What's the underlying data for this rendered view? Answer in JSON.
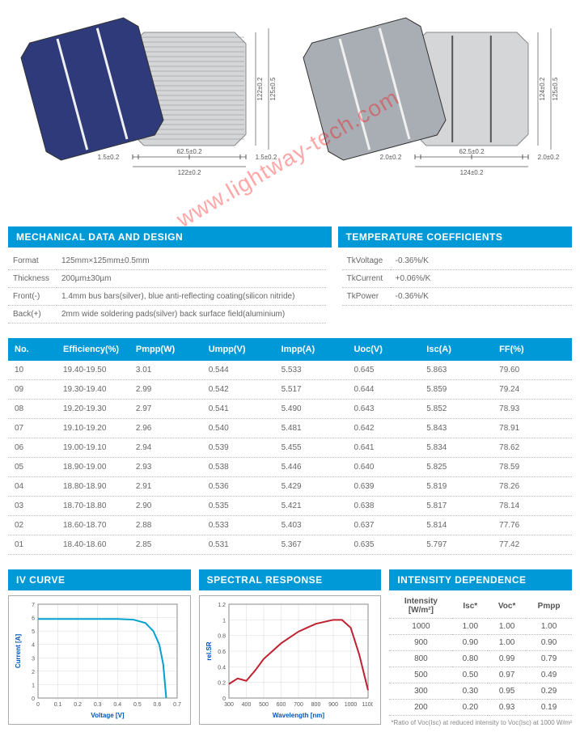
{
  "watermark_text": "www.lightway-tech.com",
  "colors": {
    "header_bg": "#0099d8",
    "header_fg": "#ffffff",
    "cell_blue": "#2e3a7a",
    "cell_grey": "#a8aeb4",
    "busbar": "#f0f0f0",
    "dim_line": "#555555",
    "iv_curve": "#00a0d0",
    "spectral_curve": "#c02030",
    "grid": "#d8d8d8",
    "axis_label": "#0055bb"
  },
  "diagrams": {
    "left": {
      "cell_color": "#2e3a7a",
      "back_has_strips": true,
      "dims_bottom": [
        "1.5±0.2",
        "62.5±0.2",
        "1.5±0.2"
      ],
      "dim_bottom_total": "122±0.2",
      "dims_right": [
        "122±0.2",
        "125±0.5"
      ]
    },
    "right": {
      "cell_color": "#a8aeb4",
      "back_has_strips": false,
      "dims_bottom": [
        "2.0±0.2",
        "62.5±0.2",
        "2.0±0.2"
      ],
      "dim_bottom_total": "124±0.2",
      "dims_right": [
        "124±0.2",
        "125±0.5"
      ]
    }
  },
  "section_headers": {
    "mech": "MECHANICAL DATA AND DESIGN",
    "temp": "TEMPERATURE COEFFICIENTS",
    "iv": "IV CURVE",
    "spectral": "SPECTRAL RESPONSE",
    "intensity": "INTENSITY DEPENDENCE"
  },
  "mech_specs": [
    {
      "k": "Format",
      "v": "125mm×125mm±0.5mm"
    },
    {
      "k": "Thickness",
      "v": "200µm±30µm"
    },
    {
      "k": "Front(-)",
      "v": "1.4mm bus bars(silver), blue anti-reflecting coating(silicon nitride)"
    },
    {
      "k": "Back(+)",
      "v": "2mm wide soldering pads(silver) back surface field(aluminium)"
    }
  ],
  "temp_coeffs": [
    {
      "k": "TkVoltage",
      "v": "-0.36%/K"
    },
    {
      "k": "TkCurrent",
      "v": "+0.06%/K"
    },
    {
      "k": "TkPower",
      "v": "-0.36%/K"
    }
  ],
  "efficiency": {
    "columns": [
      "No.",
      "Efficiency(%)",
      "Pmpp(W)",
      "Umpp(V)",
      "Impp(A)",
      "Uoc(V)",
      "Isc(A)",
      "FF(%)"
    ],
    "rows": [
      [
        "10",
        "19.40-19.50",
        "3.01",
        "0.544",
        "5.533",
        "0.645",
        "5.863",
        "79.60"
      ],
      [
        "09",
        "19.30-19.40",
        "2.99",
        "0.542",
        "5.517",
        "0.644",
        "5.859",
        "79.24"
      ],
      [
        "08",
        "19.20-19.30",
        "2.97",
        "0.541",
        "5.490",
        "0.643",
        "5.852",
        "78.93"
      ],
      [
        "07",
        "19.10-19.20",
        "2.96",
        "0.540",
        "5.481",
        "0.642",
        "5.843",
        "78.91"
      ],
      [
        "06",
        "19.00-19.10",
        "2.94",
        "0.539",
        "5.455",
        "0.641",
        "5.834",
        "78.62"
      ],
      [
        "05",
        "18.90-19.00",
        "2.93",
        "0.538",
        "5.446",
        "0.640",
        "5.825",
        "78.59"
      ],
      [
        "04",
        "18.80-18.90",
        "2.91",
        "0.536",
        "5.429",
        "0.639",
        "5.819",
        "78.26"
      ],
      [
        "03",
        "18.70-18.80",
        "2.90",
        "0.535",
        "5.421",
        "0.638",
        "5.817",
        "78.14"
      ],
      [
        "02",
        "18.60-18.70",
        "2.88",
        "0.533",
        "5.403",
        "0.637",
        "5.814",
        "77.76"
      ],
      [
        "01",
        "18.40-18.60",
        "2.85",
        "0.531",
        "5.367",
        "0.635",
        "5.797",
        "77.42"
      ]
    ]
  },
  "iv_curve": {
    "xlabel": "Voltage [V]",
    "ylabel": "Current [A]",
    "xlim": [
      0.0,
      0.7
    ],
    "xtick_step": 0.1,
    "ylim": [
      0.0,
      7.0
    ],
    "ytick_step": 1.0,
    "line_color": "#00a0d0",
    "points": [
      [
        0.0,
        5.9
      ],
      [
        0.1,
        5.9
      ],
      [
        0.2,
        5.9
      ],
      [
        0.3,
        5.9
      ],
      [
        0.4,
        5.9
      ],
      [
        0.48,
        5.85
      ],
      [
        0.54,
        5.6
      ],
      [
        0.58,
        5.0
      ],
      [
        0.61,
        4.0
      ],
      [
        0.63,
        2.5
      ],
      [
        0.645,
        0.0
      ]
    ]
  },
  "spectral": {
    "xlabel": "Wavelength [nm]",
    "ylabel": "rel.SR",
    "xlim": [
      300,
      1100
    ],
    "xtick_step": 100,
    "ylim": [
      0.0,
      1.2
    ],
    "ytick_step": 0.2,
    "line_color": "#c02030",
    "points": [
      [
        300,
        0.18
      ],
      [
        350,
        0.25
      ],
      [
        400,
        0.22
      ],
      [
        450,
        0.35
      ],
      [
        500,
        0.5
      ],
      [
        600,
        0.7
      ],
      [
        700,
        0.85
      ],
      [
        800,
        0.95
      ],
      [
        900,
        1.0
      ],
      [
        950,
        1.0
      ],
      [
        1000,
        0.9
      ],
      [
        1050,
        0.55
      ],
      [
        1100,
        0.1
      ]
    ]
  },
  "intensity": {
    "columns": [
      "Intensity\n[W/m²]",
      "Isc*",
      "Voc*",
      "Pmpp"
    ],
    "rows": [
      [
        "1000",
        "1.00",
        "1.00",
        "1.00"
      ],
      [
        "900",
        "0.90",
        "1.00",
        "0.90"
      ],
      [
        "800",
        "0.80",
        "0.99",
        "0.79"
      ],
      [
        "500",
        "0.50",
        "0.97",
        "0.49"
      ],
      [
        "300",
        "0.30",
        "0.95",
        "0.29"
      ],
      [
        "200",
        "0.20",
        "0.93",
        "0.19"
      ]
    ],
    "footnote": "*Ratio of Voc(Isc) at reduced intensity to Voc(Isc) at 1000 W/m²"
  }
}
